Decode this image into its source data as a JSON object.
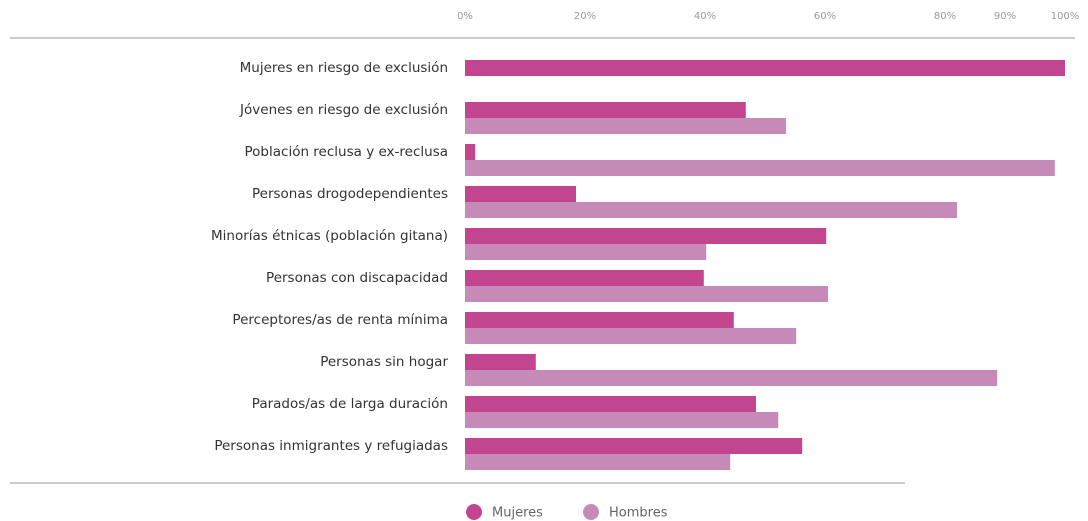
{
  "chart_data": {
    "type": "hbar",
    "categories": [
      "Mujeres en riesgo de exclusión",
      "Jóvenes en riesgo de exclusión",
      "Población reclusa y ex-reclusa",
      "Personas drogodependientes",
      "Minorías étnicas (población gitana)",
      "Personas con discapacidad",
      "Perceptores/as de renta mínima",
      "Personas sin hogar",
      "Parados/as de larga duración",
      "Personas inmigrantes y refugiadas"
    ],
    "series": [
      {
        "name": "Mujeres",
        "color": "#c2468f",
        "values": [
          100,
          46.8,
          1.7,
          18.5,
          60.2,
          39.8,
          44.8,
          11.8,
          48.5,
          56.2
        ]
      },
      {
        "name": "Hombres",
        "color": "#c58ab8",
        "values": [
          null,
          53.5,
          98.3,
          82,
          40.2,
          60.5,
          55.2,
          88.7,
          52.2,
          44.2
        ]
      }
    ],
    "xlim": [
      0,
      100
    ],
    "xticks": [
      {
        "value": 0,
        "label": "0%"
      },
      {
        "value": 20,
        "label": "20%"
      },
      {
        "value": 40,
        "label": "40%"
      },
      {
        "value": 60,
        "label": "60%"
      },
      {
        "value": 80,
        "label": "80%"
      },
      {
        "value": 90,
        "label": "90%"
      },
      {
        "value": 100,
        "label": "100%"
      }
    ],
    "legend": "bottom"
  }
}
